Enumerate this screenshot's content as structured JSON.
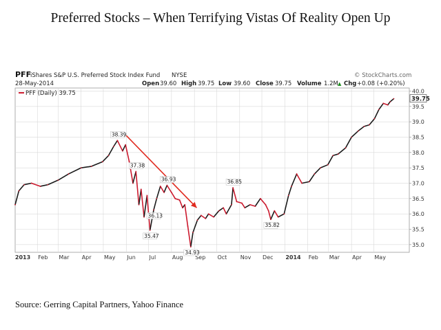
{
  "page": {
    "title": "Preferred Stocks – When Terrifying Vistas Of Reality Open Up",
    "source": "Source: Gerring Capital Partners, Yahoo Finance"
  },
  "chart_header": {
    "symbol": "PFF",
    "fund_name": "iShares S&P U.S. Preferred Stock Index Fund",
    "exchange": "NYSE",
    "watermark": "© StockCharts.com",
    "date": "28-May-2014",
    "open_label": "Open",
    "open": "39.60",
    "high_label": "High",
    "high": "39.75",
    "low_label": "Low",
    "low": "39.60",
    "close_label": "Close",
    "close": "39.75",
    "volume_label": "Volume",
    "volume": "1.2M",
    "chg_label": "Chg",
    "chg": "+0.08 (+0.20%)",
    "chg_arrow": "▲",
    "legend": "PFF (Daily) 39.75"
  },
  "chart_data": {
    "type": "line",
    "title": "PFF iShares S&P U.S. Preferred Stock Index Fund NYSE",
    "xlabel": "",
    "ylabel": "",
    "ylim": [
      34.75,
      40.1
    ],
    "yticks": [
      35.0,
      35.5,
      36.0,
      36.5,
      37.0,
      37.5,
      38.0,
      38.5,
      39.0,
      39.5,
      40.0
    ],
    "ytick_labels": [
      "35.0",
      "35.5",
      "36.0",
      "36.5",
      "37.0",
      "37.5",
      "38.0",
      "38.5",
      "39.0",
      "39.5",
      "40.0"
    ],
    "x_range": [
      "2013-01-02",
      "2014-06-18"
    ],
    "month_ticks": [
      {
        "date": "2013-01-01",
        "label": "2013",
        "bold": true
      },
      {
        "date": "2013-02-01",
        "label": "Feb"
      },
      {
        "date": "2013-03-01",
        "label": "Mar"
      },
      {
        "date": "2013-04-01",
        "label": "Apr"
      },
      {
        "date": "2013-05-01",
        "label": "May"
      },
      {
        "date": "2013-06-01",
        "label": "Jun"
      },
      {
        "date": "2013-07-01",
        "label": "Jul"
      },
      {
        "date": "2013-08-01",
        "label": "Aug"
      },
      {
        "date": "2013-09-01",
        "label": "Sep"
      },
      {
        "date": "2013-10-01",
        "label": "Oct"
      },
      {
        "date": "2013-11-01",
        "label": "Nov"
      },
      {
        "date": "2013-12-01",
        "label": "Dec"
      },
      {
        "date": "2014-01-01",
        "label": "2014",
        "bold": true
      },
      {
        "date": "2014-02-01",
        "label": "Feb"
      },
      {
        "date": "2014-03-01",
        "label": "Mar"
      },
      {
        "date": "2014-04-01",
        "label": "Apr"
      },
      {
        "date": "2014-05-01",
        "label": "May"
      }
    ],
    "series": [
      {
        "name": "PFF (Daily)",
        "points": [
          {
            "date": "2013-01-02",
            "close": 36.3
          },
          {
            "date": "2013-01-07",
            "close": 36.75
          },
          {
            "date": "2013-01-14",
            "close": 36.95
          },
          {
            "date": "2013-01-24",
            "close": 37.0
          },
          {
            "date": "2013-02-05",
            "close": 36.9
          },
          {
            "date": "2013-02-15",
            "close": 36.95
          },
          {
            "date": "2013-03-01",
            "close": 37.1
          },
          {
            "date": "2013-03-15",
            "close": 37.3
          },
          {
            "date": "2013-04-01",
            "close": 37.5
          },
          {
            "date": "2013-04-15",
            "close": 37.55
          },
          {
            "date": "2013-04-30",
            "close": 37.7
          },
          {
            "date": "2013-05-08",
            "close": 37.9
          },
          {
            "date": "2013-05-15",
            "close": 38.2
          },
          {
            "date": "2013-05-20",
            "close": 38.39
          },
          {
            "date": "2013-05-27",
            "close": 38.05
          },
          {
            "date": "2013-05-31",
            "close": 38.25
          },
          {
            "date": "2013-06-05",
            "close": 37.7
          },
          {
            "date": "2013-06-10",
            "close": 37.0
          },
          {
            "date": "2013-06-14",
            "close": 37.38
          },
          {
            "date": "2013-06-18",
            "close": 36.3
          },
          {
            "date": "2013-06-21",
            "close": 36.8
          },
          {
            "date": "2013-06-25",
            "close": 35.9
          },
          {
            "date": "2013-06-29",
            "close": 36.6
          },
          {
            "date": "2013-07-03",
            "close": 35.47
          },
          {
            "date": "2013-07-08",
            "close": 36.13
          },
          {
            "date": "2013-07-12",
            "close": 36.5
          },
          {
            "date": "2013-07-17",
            "close": 36.9
          },
          {
            "date": "2013-07-22",
            "close": 36.7
          },
          {
            "date": "2013-07-26",
            "close": 36.93
          },
          {
            "date": "2013-08-01",
            "close": 36.7
          },
          {
            "date": "2013-08-06",
            "close": 36.5
          },
          {
            "date": "2013-08-12",
            "close": 36.45
          },
          {
            "date": "2013-08-16",
            "close": 36.2
          },
          {
            "date": "2013-08-19",
            "close": 36.3
          },
          {
            "date": "2013-08-23",
            "close": 35.6
          },
          {
            "date": "2013-08-27",
            "close": 34.93
          },
          {
            "date": "2013-08-30",
            "close": 35.4
          },
          {
            "date": "2013-09-05",
            "close": 35.8
          },
          {
            "date": "2013-09-10",
            "close": 35.95
          },
          {
            "date": "2013-09-16",
            "close": 35.85
          },
          {
            "date": "2013-09-20",
            "close": 36.0
          },
          {
            "date": "2013-09-27",
            "close": 35.9
          },
          {
            "date": "2013-10-04",
            "close": 36.1
          },
          {
            "date": "2013-10-10",
            "close": 36.2
          },
          {
            "date": "2013-10-14",
            "close": 36.0
          },
          {
            "date": "2013-10-21",
            "close": 36.3
          },
          {
            "date": "2013-10-23",
            "close": 36.85
          },
          {
            "date": "2013-10-28",
            "close": 36.4
          },
          {
            "date": "2013-11-04",
            "close": 36.35
          },
          {
            "date": "2013-11-08",
            "close": 36.2
          },
          {
            "date": "2013-11-15",
            "close": 36.3
          },
          {
            "date": "2013-11-22",
            "close": 36.25
          },
          {
            "date": "2013-11-29",
            "close": 36.5
          },
          {
            "date": "2013-12-06",
            "close": 36.3
          },
          {
            "date": "2013-12-10",
            "close": 36.1
          },
          {
            "date": "2013-12-13",
            "close": 35.82
          },
          {
            "date": "2013-12-18",
            "close": 36.1
          },
          {
            "date": "2013-12-23",
            "close": 35.9
          },
          {
            "date": "2013-12-31",
            "close": 36.0
          },
          {
            "date": "2014-01-06",
            "close": 36.6
          },
          {
            "date": "2014-01-10",
            "close": 36.9
          },
          {
            "date": "2014-01-17",
            "close": 37.3
          },
          {
            "date": "2014-01-24",
            "close": 37.0
          },
          {
            "date": "2014-02-03",
            "close": 37.05
          },
          {
            "date": "2014-02-10",
            "close": 37.3
          },
          {
            "date": "2014-02-18",
            "close": 37.5
          },
          {
            "date": "2014-02-28",
            "close": 37.6
          },
          {
            "date": "2014-03-07",
            "close": 37.9
          },
          {
            "date": "2014-03-14",
            "close": 37.95
          },
          {
            "date": "2014-03-24",
            "close": 38.15
          },
          {
            "date": "2014-04-01",
            "close": 38.5
          },
          {
            "date": "2014-04-10",
            "close": 38.7
          },
          {
            "date": "2014-04-18",
            "close": 38.85
          },
          {
            "date": "2014-04-25",
            "close": 38.9
          },
          {
            "date": "2014-05-02",
            "close": 39.1
          },
          {
            "date": "2014-05-08",
            "close": 39.4
          },
          {
            "date": "2014-05-14",
            "close": 39.6
          },
          {
            "date": "2014-05-20",
            "close": 39.55
          },
          {
            "date": "2014-05-23",
            "close": 39.65
          },
          {
            "date": "2014-05-28",
            "close": 39.75
          }
        ]
      }
    ],
    "annotations": [
      {
        "label": "38.39",
        "date": "2013-05-20",
        "value": 38.39,
        "position": "above"
      },
      {
        "label": "37.38",
        "date": "2013-06-14",
        "value": 37.38,
        "position": "above"
      },
      {
        "label": "36.93",
        "date": "2013-07-26",
        "value": 36.93,
        "position": "above"
      },
      {
        "label": "36.13",
        "date": "2013-07-08",
        "value": 36.13,
        "position": "below"
      },
      {
        "label": "35.47",
        "date": "2013-07-03",
        "value": 35.47,
        "position": "below"
      },
      {
        "label": "34.93",
        "date": "2013-08-27",
        "value": 34.93,
        "position": "below"
      },
      {
        "label": "36.85",
        "date": "2013-10-23",
        "value": 36.85,
        "position": "above"
      },
      {
        "label": "35.82",
        "date": "2013-12-13",
        "value": 35.82,
        "position": "below"
      },
      {
        "label": "39.75",
        "date": "2014-05-28",
        "value": 39.75,
        "position": "axis"
      }
    ],
    "trend_arrow": {
      "from": {
        "date": "2013-06-01",
        "value": 38.55
      },
      "to": {
        "date": "2013-09-04",
        "value": 36.2
      },
      "color": "#e02a1f"
    },
    "colors": {
      "up": "#1a1a1a",
      "down": "#cc1a2e",
      "grid": "#d8d8d8",
      "arrow": "#e02a1f"
    },
    "grid": true,
    "legend": "top-left"
  }
}
